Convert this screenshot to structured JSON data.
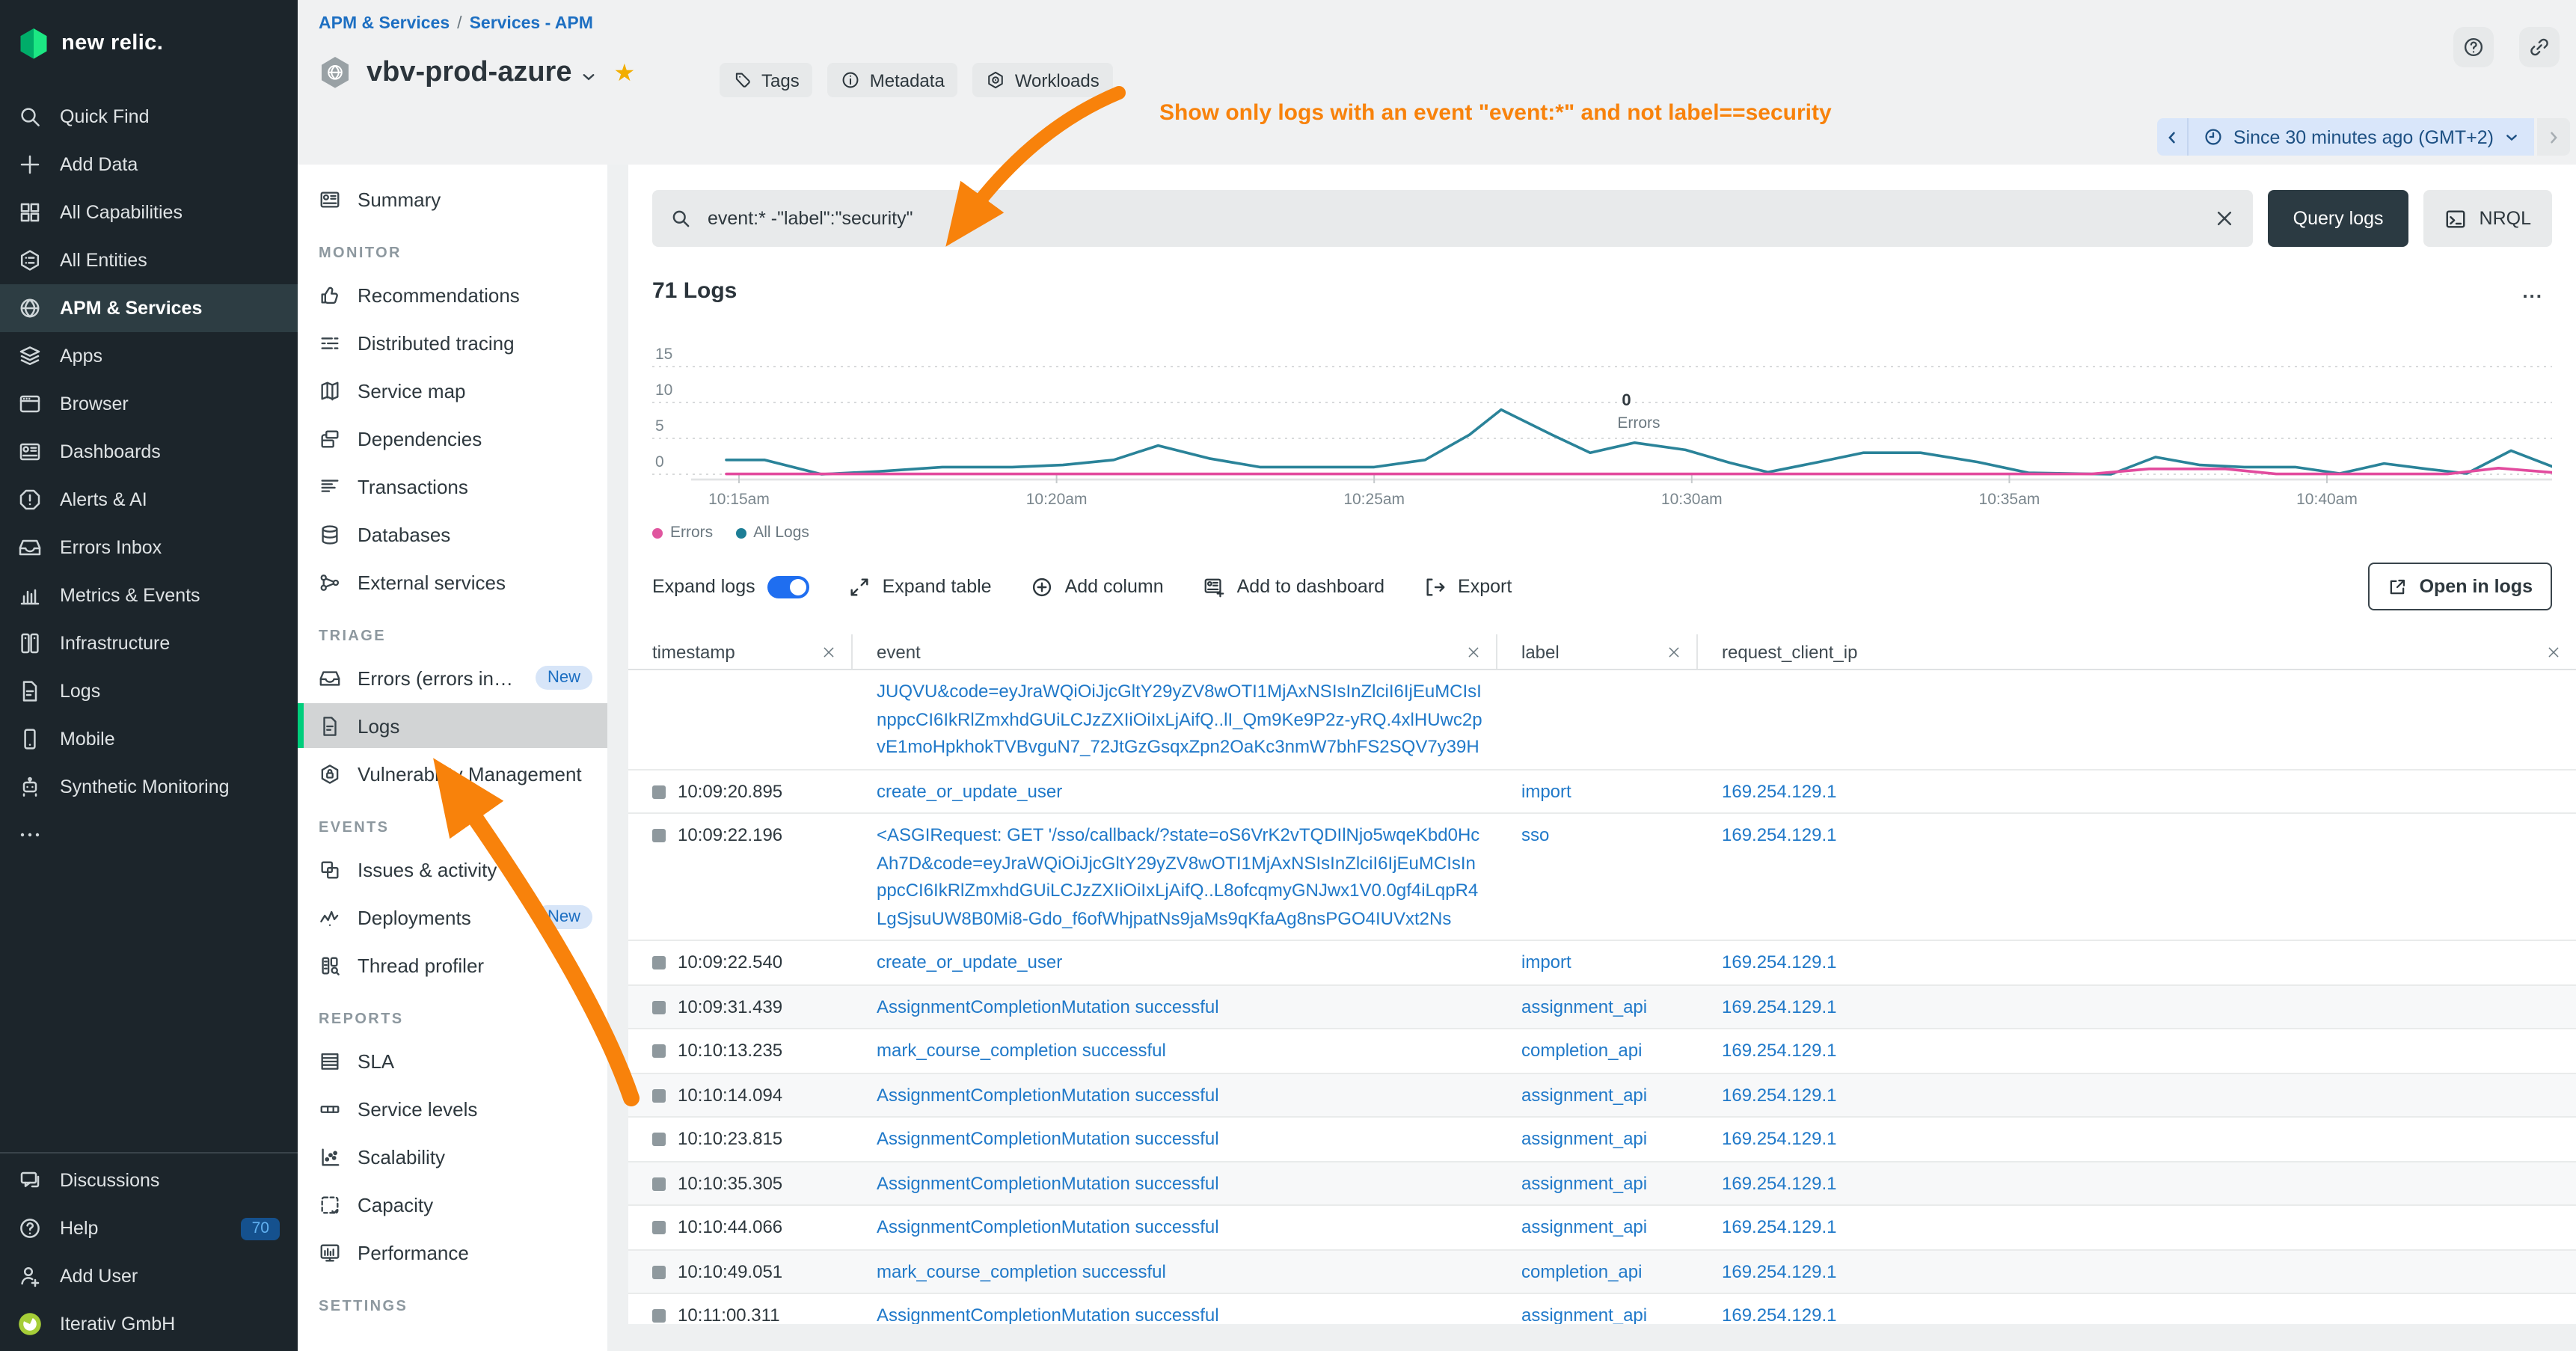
{
  "logo": {
    "text": "new relic."
  },
  "sidebar": {
    "items": [
      {
        "label": "Quick Find",
        "icon": "search"
      },
      {
        "label": "Add Data",
        "icon": "plus"
      },
      {
        "label": "All Capabilities",
        "icon": "grid"
      },
      {
        "label": "All Entities",
        "icon": "hexlist"
      },
      {
        "label": "APM & Services",
        "icon": "globe",
        "selected": true
      },
      {
        "label": "Apps",
        "icon": "layers"
      },
      {
        "label": "Browser",
        "icon": "window"
      },
      {
        "label": "Dashboards",
        "icon": "dashboard"
      },
      {
        "label": "Alerts & AI",
        "icon": "alert"
      },
      {
        "label": "Errors Inbox",
        "icon": "inbox"
      },
      {
        "label": "Metrics & Events",
        "icon": "barchart"
      },
      {
        "label": "Infrastructure",
        "icon": "servers"
      },
      {
        "label": "Logs",
        "icon": "document"
      },
      {
        "label": "Mobile",
        "icon": "phone"
      },
      {
        "label": "Synthetic Monitoring",
        "icon": "robot"
      },
      {
        "label": "",
        "icon": "dots"
      }
    ],
    "footer_items": [
      {
        "label": "Discussions",
        "icon": "chat"
      },
      {
        "label": "Help",
        "icon": "help",
        "badge": "70"
      },
      {
        "label": "Add User",
        "icon": "useradd"
      },
      {
        "label": "Iterativ GmbH",
        "icon": "account"
      }
    ]
  },
  "breadcrumb": {
    "links": [
      "APM & Services",
      "Services - APM"
    ],
    "separator": "/"
  },
  "entity": {
    "title": "vbv-prod-azure",
    "buttons": [
      {
        "label": "Tags",
        "icon": "tag"
      },
      {
        "label": "Metadata",
        "icon": "info"
      },
      {
        "label": "Workloads",
        "icon": "workloads"
      }
    ]
  },
  "top_actions": [
    {
      "icon": "help"
    },
    {
      "icon": "link"
    }
  ],
  "time_picker": {
    "label": "Since 30 minutes ago (GMT+2)"
  },
  "annotation": {
    "text": "Show only logs with an event \"event:*\" and not label==security",
    "color": "#f8820b"
  },
  "secondary_nav": {
    "sections": [
      {
        "header": "",
        "items": [
          {
            "label": "Summary",
            "icon": "dashboard"
          }
        ]
      },
      {
        "header": "MONITOR",
        "items": [
          {
            "label": "Recommendations",
            "icon": "thumbsup"
          },
          {
            "label": "Distributed tracing",
            "icon": "tracing"
          },
          {
            "label": "Service map",
            "icon": "map"
          },
          {
            "label": "Dependencies",
            "icon": "deps"
          },
          {
            "label": "Transactions",
            "icon": "transactions"
          },
          {
            "label": "Databases",
            "icon": "database"
          },
          {
            "label": "External services",
            "icon": "extsvc"
          }
        ]
      },
      {
        "header": "TRIAGE",
        "items": [
          {
            "label": "Errors (errors inb...",
            "icon": "inbox",
            "badge": "New"
          },
          {
            "label": "Logs",
            "icon": "document",
            "selected": true
          },
          {
            "label": "Vulnerability Management",
            "icon": "shield"
          }
        ]
      },
      {
        "header": "EVENTS",
        "items": [
          {
            "label": "Issues & activity",
            "icon": "copies"
          },
          {
            "label": "Deployments",
            "icon": "pulse",
            "badge": "New"
          },
          {
            "label": "Thread profiler",
            "icon": "profiler"
          }
        ]
      },
      {
        "header": "REPORTS",
        "items": [
          {
            "label": "SLA",
            "icon": "slatable"
          },
          {
            "label": "Service levels",
            "icon": "servicelevels"
          },
          {
            "label": "Scalability",
            "icon": "scatter"
          },
          {
            "label": "Capacity",
            "icon": "capacity"
          },
          {
            "label": "Performance",
            "icon": "performance"
          }
        ]
      },
      {
        "header": "SETTINGS",
        "items": []
      }
    ]
  },
  "search": {
    "query": "event:* -\"label\":\"security\"",
    "query_logs_label": "Query logs",
    "nrql_label": "NRQL"
  },
  "logs_panel": {
    "count_label": "71 Logs",
    "menu_label": "..."
  },
  "chart_data": {
    "type": "line",
    "title": "71 Logs",
    "y_axis": {
      "ticks": [
        0,
        5,
        10,
        15
      ],
      "range": [
        0,
        15
      ]
    },
    "x_axis": {
      "tick_minutes": [
        15,
        20,
        25,
        30,
        35,
        40
      ],
      "tick_labels": [
        "10:15am",
        "10:20am",
        "10:25am",
        "10:30am",
        "10:35am",
        "10:40am"
      ],
      "domain_minutes": [
        14.8,
        43.6
      ]
    },
    "annotation": {
      "value": "0",
      "label": "Errors",
      "minute": 28.9
    },
    "series": [
      {
        "name": "All Logs",
        "color": "#2a8399",
        "points": [
          [
            14.8,
            2
          ],
          [
            15.4,
            2
          ],
          [
            16.3,
            0
          ],
          [
            17.2,
            0.4
          ],
          [
            18.2,
            1
          ],
          [
            19.3,
            1
          ],
          [
            20.1,
            1.3
          ],
          [
            20.9,
            2
          ],
          [
            21.6,
            4
          ],
          [
            22.4,
            2.2
          ],
          [
            23.2,
            1
          ],
          [
            24.2,
            1
          ],
          [
            25,
            1
          ],
          [
            25.8,
            2
          ],
          [
            26.5,
            5.5
          ],
          [
            27,
            9
          ],
          [
            27.8,
            5.5
          ],
          [
            28.4,
            3
          ],
          [
            29.1,
            4.4
          ],
          [
            29.9,
            3.4
          ],
          [
            30.6,
            1.6
          ],
          [
            31.2,
            0.3
          ],
          [
            32,
            1.7
          ],
          [
            32.7,
            3
          ],
          [
            33.6,
            3
          ],
          [
            34.5,
            1.7
          ],
          [
            35.3,
            0.2
          ],
          [
            36.6,
            0
          ],
          [
            37.3,
            2.4
          ],
          [
            38,
            1.3
          ],
          [
            38.7,
            1
          ],
          [
            39.5,
            1
          ],
          [
            40.2,
            0.1
          ],
          [
            40.9,
            1.5
          ],
          [
            41.6,
            0.7
          ],
          [
            42.2,
            0.1
          ],
          [
            42.9,
            3.3
          ],
          [
            43.6,
            0.9
          ]
        ]
      },
      {
        "name": "Errors",
        "color": "#e24b9e",
        "points": [
          [
            14.8,
            0.05
          ],
          [
            36.3,
            0.05
          ],
          [
            37.2,
            0.75
          ],
          [
            38.4,
            0.75
          ],
          [
            39.2,
            0.05
          ],
          [
            41.9,
            0.05
          ],
          [
            42.7,
            0.85
          ],
          [
            43.6,
            0.2
          ]
        ]
      }
    ],
    "legend_position": "bottom-left",
    "grid": true
  },
  "legend": [
    {
      "label": "Errors",
      "color": "#e0569f"
    },
    {
      "label": "All Logs",
      "color": "#1d7e96"
    }
  ],
  "toolbar": {
    "expand_logs": "Expand logs",
    "toggle_on": true,
    "expand_table": "Expand table",
    "add_column": "Add column",
    "add_to_dashboard": "Add to dashboard",
    "export_label": "Export",
    "open_in_logs": "Open in logs"
  },
  "table": {
    "columns": [
      {
        "key": "timestamp",
        "label": "timestamp"
      },
      {
        "key": "event",
        "label": "event"
      },
      {
        "key": "label",
        "label": "label"
      },
      {
        "key": "request_client_ip",
        "label": "request_client_ip"
      }
    ],
    "rows": [
      {
        "timestamp": "",
        "event": "JUQVU&code=eyJraWQiOiJjcGltY29yZV8wOTI1MjAxNSIsInZlciI6IjEuMCIsInppcCI6IkRlZmxhdGUiLCJzZXIiOiIxLjAifQ..lI_Qm9Ke9P2z-yRQ.4xlHUwc2pvE1moHpkhokTVBvguN7_72JtGzGsqxZpn2OaKc3nmW7bhFS2SQV7y39H",
        "label": "",
        "request_client_ip": ""
      },
      {
        "timestamp": "10:09:20.895",
        "event": "create_or_update_user",
        "label": "import",
        "request_client_ip": "169.254.129.1"
      },
      {
        "timestamp": "10:09:22.196",
        "event": "<ASGIRequest: GET '/sso/callback/?state=oS6VrK2vTQDIlNjo5wqeKbd0HcAh7D&code=eyJraWQiOiJjcGltY29yZV8wOTI1MjAxNSIsInZlciI6IjEuMCIsInppcCI6IkRlZmxhdGUiLCJzZXIiOiIxLjAifQ..L8ofcqmyGNJwx1V0.0gf4iLqpR4LgSjsuUW8B0Mi8-Gdo_f6ofWhjpatNs9jaMs9qKfaAg8nsPGO4IUVxt2Ns",
        "label": "sso",
        "request_client_ip": "169.254.129.1"
      },
      {
        "timestamp": "10:09:22.540",
        "event": "create_or_update_user",
        "label": "import",
        "request_client_ip": "169.254.129.1"
      },
      {
        "timestamp": "10:09:31.439",
        "event": "AssignmentCompletionMutation successful",
        "label": "assignment_api",
        "request_client_ip": "169.254.129.1"
      },
      {
        "timestamp": "10:10:13.235",
        "event": "mark_course_completion successful",
        "label": "completion_api",
        "request_client_ip": "169.254.129.1"
      },
      {
        "timestamp": "10:10:14.094",
        "event": "AssignmentCompletionMutation successful",
        "label": "assignment_api",
        "request_client_ip": "169.254.129.1"
      },
      {
        "timestamp": "10:10:23.815",
        "event": "AssignmentCompletionMutation successful",
        "label": "assignment_api",
        "request_client_ip": "169.254.129.1"
      },
      {
        "timestamp": "10:10:35.305",
        "event": "AssignmentCompletionMutation successful",
        "label": "assignment_api",
        "request_client_ip": "169.254.129.1"
      },
      {
        "timestamp": "10:10:44.066",
        "event": "AssignmentCompletionMutation successful",
        "label": "assignment_api",
        "request_client_ip": "169.254.129.1"
      },
      {
        "timestamp": "10:10:49.051",
        "event": "mark_course_completion successful",
        "label": "completion_api",
        "request_client_ip": "169.254.129.1"
      },
      {
        "timestamp": "10:11:00.311",
        "event": "AssignmentCompletionMutation successful",
        "label": "assignment_api",
        "request_client_ip": "169.254.129.1"
      }
    ],
    "striped_row_indices": [
      4,
      6,
      8,
      10
    ]
  },
  "colors": {
    "accent_green": "#00ce7c",
    "brand_green": "#1ce783",
    "link_blue": "#2079c9",
    "orange_annotation": "#f8820b",
    "errors_pink": "#e24b9e",
    "all_logs_teal": "#2a8399"
  }
}
